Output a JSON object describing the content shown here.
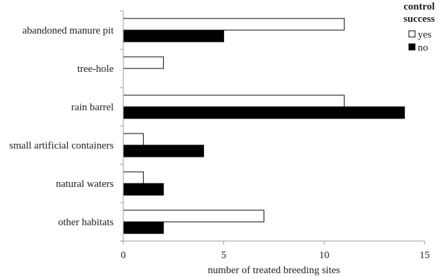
{
  "chart_data": {
    "type": "bar",
    "orientation": "horizontal",
    "categories": [
      "abandoned manure pit",
      "tree-hole",
      "rain barrel",
      "small artificial containers",
      "natural waters",
      "other habitats"
    ],
    "series": [
      {
        "name": "yes",
        "color": "#ffffff",
        "stroke": "#000000",
        "values": [
          11,
          2,
          11,
          1,
          1,
          7
        ]
      },
      {
        "name": "no",
        "color": "#000000",
        "stroke": "#000000",
        "values": [
          5,
          0,
          14,
          4,
          2,
          2
        ]
      }
    ],
    "xlabel": "number of treated breeding sites",
    "ylabel": "",
    "xlim": [
      0,
      15
    ],
    "xticks": [
      0,
      5,
      10,
      15
    ],
    "grid": false,
    "legend": {
      "title_lines": [
        "control",
        "success"
      ],
      "placement": "top-right"
    }
  }
}
